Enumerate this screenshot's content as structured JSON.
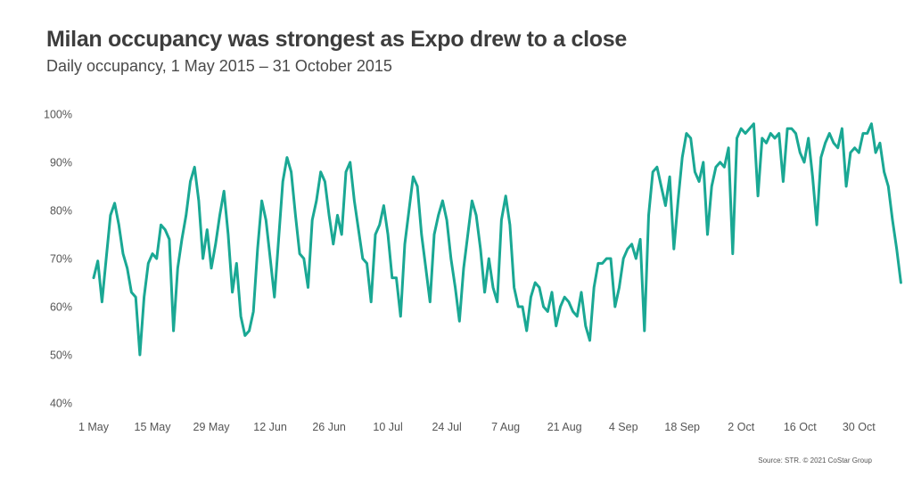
{
  "colors": {
    "line": "#1aa894",
    "text": "#3d3d3d",
    "axis_text": "#555555"
  },
  "chart_data": {
    "type": "line",
    "title": "Milan occupancy was strongest as Expo drew to a close",
    "subtitle": "Daily occupancy, 1 May 2015 – 31 October 2015",
    "xlabel": "",
    "ylabel": "",
    "ylim": [
      40,
      100
    ],
    "y_ticks": [
      40,
      50,
      60,
      70,
      80,
      90,
      100
    ],
    "y_tick_labels": [
      "40%",
      "50%",
      "60%",
      "70%",
      "80%",
      "90%",
      "100%"
    ],
    "x_ticks": [
      0,
      14,
      28,
      42,
      56,
      70,
      84,
      98,
      112,
      126,
      140,
      154,
      168,
      182
    ],
    "x_tick_labels": [
      "1 May",
      "15 May",
      "29 May",
      "12 Jun",
      "26 Jun",
      "10 Jul",
      "24 Jul",
      "7 Aug",
      "21 Aug",
      "4 Sep",
      "18 Sep",
      "2 Oct",
      "16 Oct",
      "30 Oct"
    ],
    "grid": false,
    "series": [
      {
        "name": "Daily occupancy (%)",
        "x_start": 0,
        "values": [
          66,
          69.5,
          61,
          70,
          79,
          81.5,
          77,
          71,
          68,
          63,
          62,
          50,
          62,
          69,
          71,
          70,
          77,
          76,
          74,
          55,
          68,
          74,
          79,
          86,
          89,
          82,
          70,
          76,
          68,
          73,
          79,
          84,
          75,
          63,
          69,
          58,
          54,
          55,
          59,
          72,
          82,
          78,
          70,
          62,
          74,
          86,
          91,
          88,
          79,
          71,
          70,
          64,
          78,
          82,
          88,
          86,
          79,
          73,
          79,
          75,
          88,
          90,
          82,
          76,
          70,
          69,
          61,
          75,
          77,
          81,
          75,
          66,
          66,
          58,
          73,
          80,
          87,
          85,
          75,
          68,
          61,
          75,
          79,
          82,
          78,
          70,
          64,
          57,
          68,
          75,
          82,
          79,
          72,
          63,
          70,
          64,
          61,
          78,
          83,
          77,
          64,
          60,
          60,
          55,
          62,
          65,
          64,
          60,
          59,
          63,
          56,
          60,
          62,
          61,
          59,
          58,
          63,
          56,
          53,
          64,
          69,
          69,
          70,
          70,
          60,
          64,
          70,
          72,
          73,
          70,
          74,
          55,
          79,
          88,
          89,
          85,
          81,
          87,
          72,
          82,
          91,
          96,
          95,
          88,
          86,
          90,
          75,
          85,
          89,
          90,
          89,
          93,
          71,
          95,
          97,
          96,
          97,
          98,
          83,
          95,
          94,
          96,
          95,
          96,
          86,
          97,
          97,
          96,
          92,
          90,
          95,
          87,
          77,
          91,
          94,
          96,
          94,
          93,
          97,
          85,
          92,
          93,
          92,
          96,
          96,
          98,
          92,
          94,
          88,
          85,
          78,
          72,
          65
        ]
      }
    ]
  },
  "source": "Source: STR. © 2021 CoStar Group"
}
